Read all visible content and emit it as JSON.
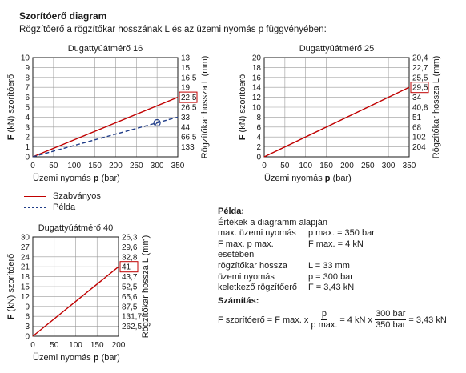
{
  "header": {
    "title": "Szorítóerő diagram",
    "subtitle": "Rögzítőerő a rögzítőkar hosszának L és az üzemi nyomás p függvényében:"
  },
  "legend": {
    "standard": "Szabványos",
    "example": "Példa"
  },
  "example_box": {
    "title": "Példa:",
    "intro": "Értékek a diagramm alapján",
    "rows": [
      {
        "label": "max. üzemi nyomás",
        "value": "p max. = 350 bar"
      },
      {
        "label": "F max. p max. esetében",
        "value": "F max. = 4 kN"
      },
      {
        "label": "rögzítőkar hossza",
        "value": "L = 33 mm"
      },
      {
        "label": "üzemi nyomás",
        "value": "p = 300 bar"
      },
      {
        "label": "keletkező rögzítőerő",
        "value": "F = 3,43 kN"
      }
    ]
  },
  "calculation": {
    "title": "Számítás:",
    "lhs": "F szorítóerő = F max. x",
    "frac1_num": "p",
    "frac1_den": "p max.",
    "mid": "= 4 kN x",
    "frac2_num": "300 bar",
    "frac2_den": "350 bar",
    "result": "= 3,43 kN"
  },
  "colors": {
    "standard_line": "#c00000",
    "example_line": "#1f3c88",
    "grid": "#9a9a9a",
    "axis": "#1a1a1a",
    "highlight_box": "#c00000"
  },
  "chart_data": [
    {
      "type": "line",
      "title": "Dugattyúátmérő 16",
      "xlabel": "Üzemi nyomás p (bar)",
      "ylabel": "F (kN) szorítóerő",
      "ylabel_right": "Rögzítőkar hossza L (mm)",
      "xlim": [
        0,
        350
      ],
      "ylim": [
        0,
        10
      ],
      "x_ticks": [
        0,
        50,
        100,
        150,
        200,
        250,
        300,
        350
      ],
      "y_ticks": [
        0,
        1,
        2,
        3,
        4,
        5,
        6,
        7,
        8,
        9,
        10
      ],
      "right_ticks": [
        "133",
        "66,5",
        "44",
        "33",
        "26,5",
        "22,5",
        "19",
        "16,5",
        "15",
        "13"
      ],
      "highlight_label": "22,5",
      "grid": true,
      "series": [
        {
          "name": "Szabványos",
          "style": "solid",
          "x": [
            0,
            350
          ],
          "y": [
            0,
            6
          ]
        },
        {
          "name": "Példa",
          "style": "dashed",
          "x": [
            0,
            350
          ],
          "y": [
            0,
            4
          ]
        }
      ],
      "marker": {
        "x": 300,
        "y": 3.43
      }
    },
    {
      "type": "line",
      "title": "Dugattyúátmérő 25",
      "xlabel": "Üzemi nyomás p (bar)",
      "ylabel": "F (kN) szorítóerő",
      "ylabel_right": "Rögzítőkar hossza L (mm)",
      "xlim": [
        0,
        350
      ],
      "ylim": [
        0,
        20
      ],
      "x_ticks": [
        0,
        50,
        100,
        150,
        200,
        250,
        300,
        350
      ],
      "y_ticks": [
        0,
        2,
        4,
        6,
        8,
        10,
        12,
        14,
        16,
        18,
        20
      ],
      "right_ticks": [
        "204",
        "102",
        "68",
        "51",
        "40,8",
        "34",
        "29,5",
        "25,5",
        "22,7",
        "20,4"
      ],
      "highlight_label": "29,5",
      "grid": true,
      "series": [
        {
          "name": "Szabványos",
          "style": "solid",
          "x": [
            0,
            350
          ],
          "y": [
            0,
            14
          ]
        }
      ]
    },
    {
      "type": "line",
      "title": "Dugattyúátmérő 40",
      "xlabel": "Üzemi nyomás p (bar)",
      "ylabel": "F (kN) szorítóerő",
      "ylabel_right": "Rögzítőkar hossza L (mm)",
      "xlim": [
        0,
        200
      ],
      "ylim": [
        0,
        30
      ],
      "x_ticks": [
        0,
        50,
        100,
        150,
        200
      ],
      "y_ticks": [
        0,
        3,
        6,
        9,
        12,
        15,
        18,
        21,
        24,
        27,
        30
      ],
      "right_ticks": [
        "262,5",
        "131,7",
        "87,5",
        "65,6",
        "52,5",
        "43,7",
        "41",
        "32,8",
        "29,6",
        "26,3"
      ],
      "highlight_label": "41",
      "grid": true,
      "series": [
        {
          "name": "Szabványos",
          "style": "solid",
          "x": [
            0,
            200
          ],
          "y": [
            0,
            21
          ]
        }
      ]
    }
  ]
}
